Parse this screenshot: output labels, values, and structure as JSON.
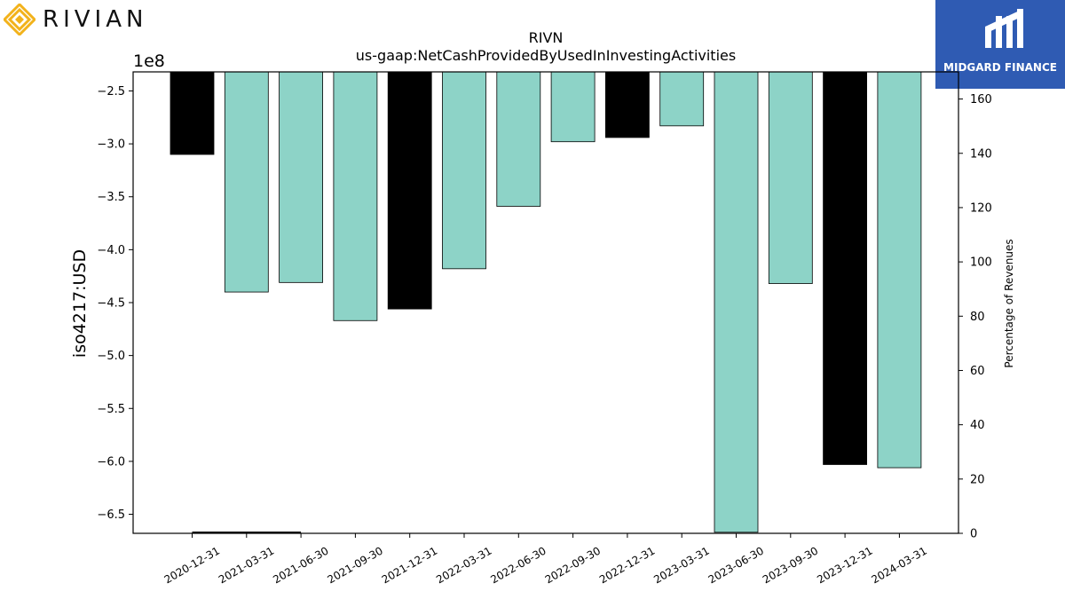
{
  "branding": {
    "left_logo_text": "RIVIAN",
    "right_logo_text": "MIDGARD FINANCE",
    "right_logo_color": "#2f5bb3",
    "left_logo_color": "#f2b21b"
  },
  "chart_data": {
    "type": "bar",
    "title": "RIVN",
    "subtitle": "us-gaap:NetCashProvidedByUsedInInvestingActivities",
    "ylabel": "iso4217:USD",
    "y2label": "Percentage of Revenues",
    "offset_text": "1e8",
    "categories": [
      "2020-12-31",
      "2021-03-31",
      "2021-06-30",
      "2021-09-30",
      "2021-12-31",
      "2022-03-31",
      "2022-06-30",
      "2022-09-30",
      "2022-12-31",
      "2023-03-31",
      "2023-06-30",
      "2023-09-30",
      "2023-12-31",
      "2024-03-31"
    ],
    "values": [
      -3.1,
      -4.4,
      -4.31,
      -4.67,
      -4.56,
      -4.18,
      -3.59,
      -2.98,
      -2.94,
      -2.83,
      -6.67,
      -4.32,
      -6.03,
      -6.06
    ],
    "bar_colors": [
      "#000000",
      "#8dd3c7",
      "#8dd3c7",
      "#8dd3c7",
      "#000000",
      "#8dd3c7",
      "#8dd3c7",
      "#8dd3c7",
      "#000000",
      "#8dd3c7",
      "#8dd3c7",
      "#8dd3c7",
      "#000000",
      "#8dd3c7"
    ],
    "ylim": [
      -6.68,
      -2.32
    ],
    "yticks": [
      "-2.5",
      "-3.0",
      "-3.5",
      "-4.0",
      "-4.5",
      "-5.0",
      "-5.5",
      "-6.0",
      "-6.5"
    ],
    "y2lim": [
      0,
      170
    ],
    "y2ticks": [
      "0",
      "20",
      "40",
      "60",
      "80",
      "100",
      "120",
      "140",
      "160"
    ],
    "percentage_series": {
      "name": "Percentage of Revenues",
      "values": [
        0.4,
        0.4,
        0.4
      ]
    },
    "grid": false,
    "legend": "none"
  }
}
